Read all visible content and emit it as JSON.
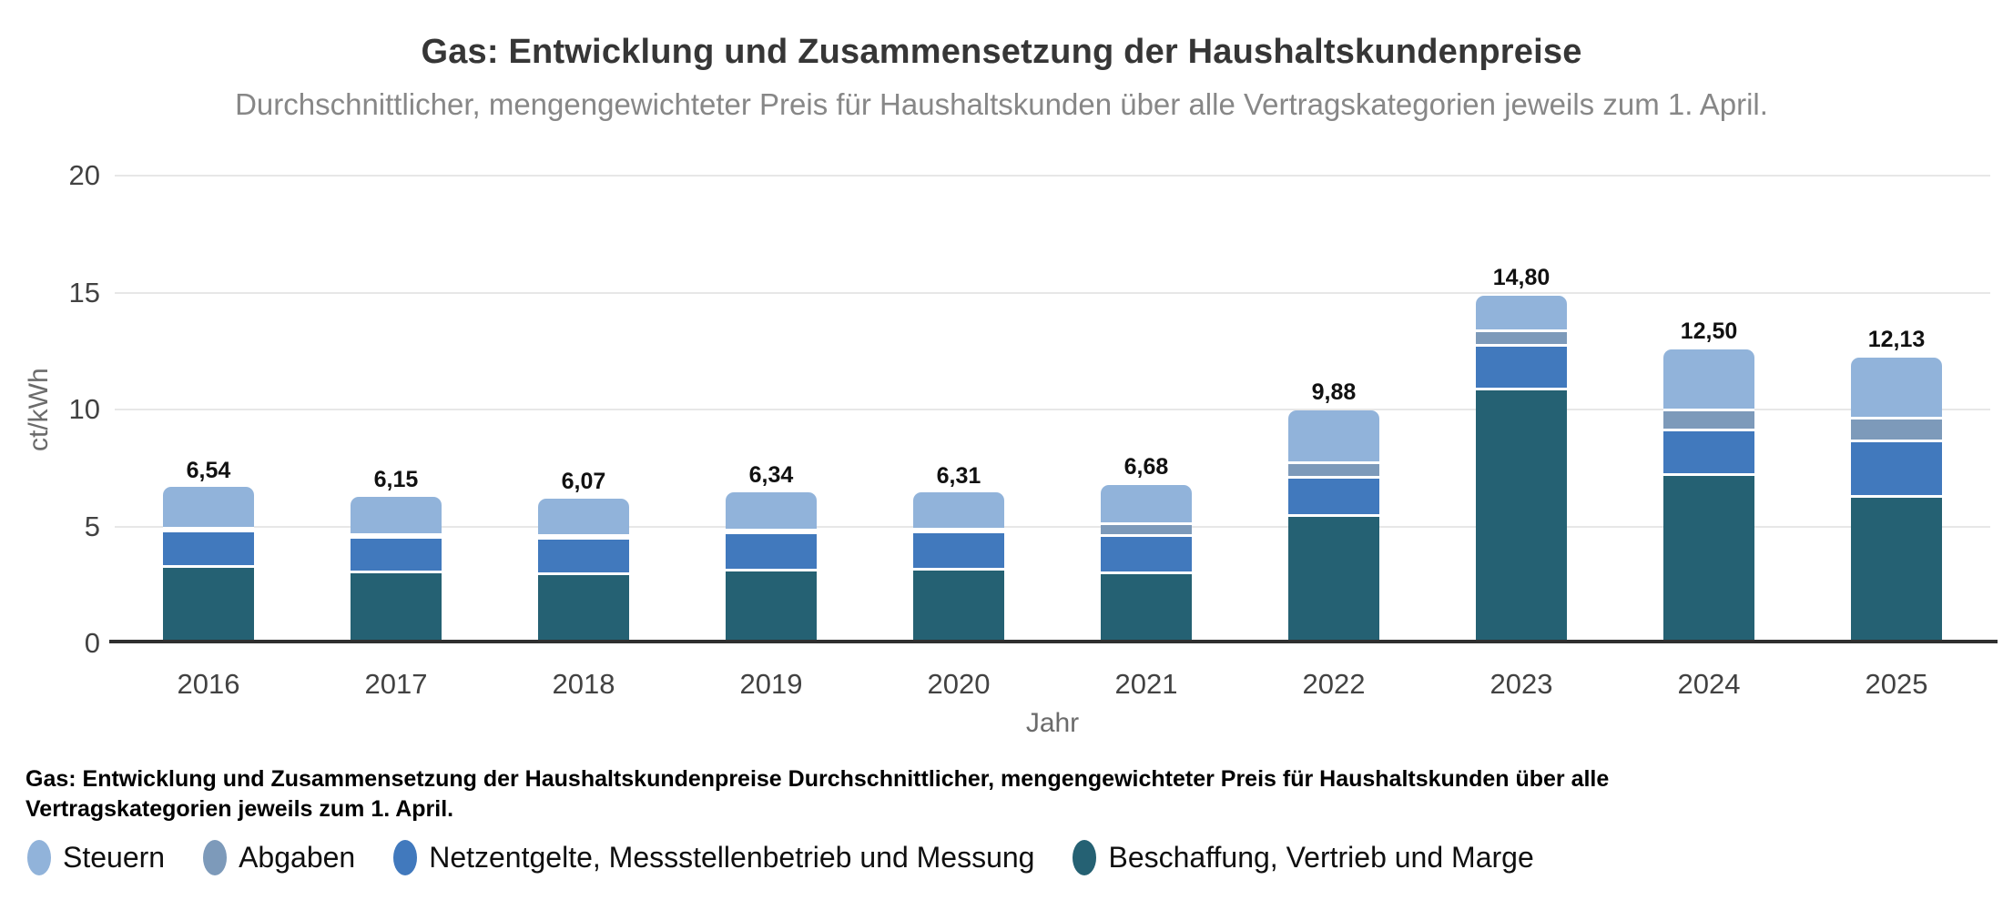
{
  "title": "Gas: Entwicklung und Zusammensetzung der Haushaltskundenpreise",
  "subtitle": "Durchschnittlicher, mengengewichteter Preis für Haushaltskunden über alle Vertragskategorien jeweils zum 1. April.",
  "y_axis": {
    "label": "ct/kWh",
    "ticks": [
      0,
      5,
      10,
      15,
      20
    ],
    "max": 20
  },
  "x_axis": {
    "label": "Jahr"
  },
  "caption": {
    "text": "Gas: Entwicklung und Zusammensetzung der Haushaltskundenpreise Durchschnittlicher, mengengewichteter Preis für Haushaltskunden über alle Vertragskategorien jeweils zum 1. April."
  },
  "legend": {
    "items": [
      {
        "label": "Steuern",
        "color": "#91b3da"
      },
      {
        "label": "Abgaben",
        "color": "#7d9aba"
      },
      {
        "label": "Netzentgelte, Messstellenbetrieb und Messung",
        "color": "#4179bd"
      },
      {
        "label": "Beschaffung, Vertrieb und Marge",
        "color": "#256173"
      }
    ]
  },
  "chart_data": {
    "type": "bar",
    "stacked": true,
    "title": "Gas: Entwicklung und Zusammensetzung der Haushaltskundenpreise",
    "subtitle": "Durchschnittlicher, mengengewichteter Preis für Haushaltskunden über alle Vertragskategorien jeweils zum 1. April.",
    "xlabel": "Jahr",
    "ylabel": "ct/kWh",
    "ylim": [
      0,
      20
    ],
    "grid": true,
    "legend_position": "bottom",
    "categories": [
      "2016",
      "2017",
      "2018",
      "2019",
      "2020",
      "2021",
      "2022",
      "2023",
      "2024",
      "2025"
    ],
    "series": [
      {
        "name": "Beschaffung, Vertrieb und Marge",
        "color": "#256173",
        "values": [
          3.27,
          3.05,
          2.95,
          3.12,
          3.15,
          3.0,
          5.45,
          10.85,
          7.18,
          6.28
        ]
      },
      {
        "name": "Netzentgelte, Messstellenbetrieb und Messung",
        "color": "#4179bd",
        "values": [
          1.53,
          1.48,
          1.52,
          1.6,
          1.58,
          1.58,
          1.65,
          1.89,
          1.94,
          2.34
        ]
      },
      {
        "name": "Abgaben",
        "color": "#7d9aba",
        "values": [
          0.06,
          0.06,
          0.06,
          0.06,
          0.06,
          0.52,
          0.59,
          0.59,
          0.83,
          1.0
        ]
      },
      {
        "name": "Steuern",
        "color": "#91b3da",
        "values": [
          1.68,
          1.56,
          1.54,
          1.56,
          1.52,
          1.58,
          2.19,
          1.47,
          2.55,
          2.51
        ]
      }
    ],
    "totals": [
      "6,54",
      "6,15",
      "6,07",
      "6,34",
      "6,31",
      "6,68",
      "9,88",
      "14,80",
      "12,50",
      "12,13"
    ]
  }
}
